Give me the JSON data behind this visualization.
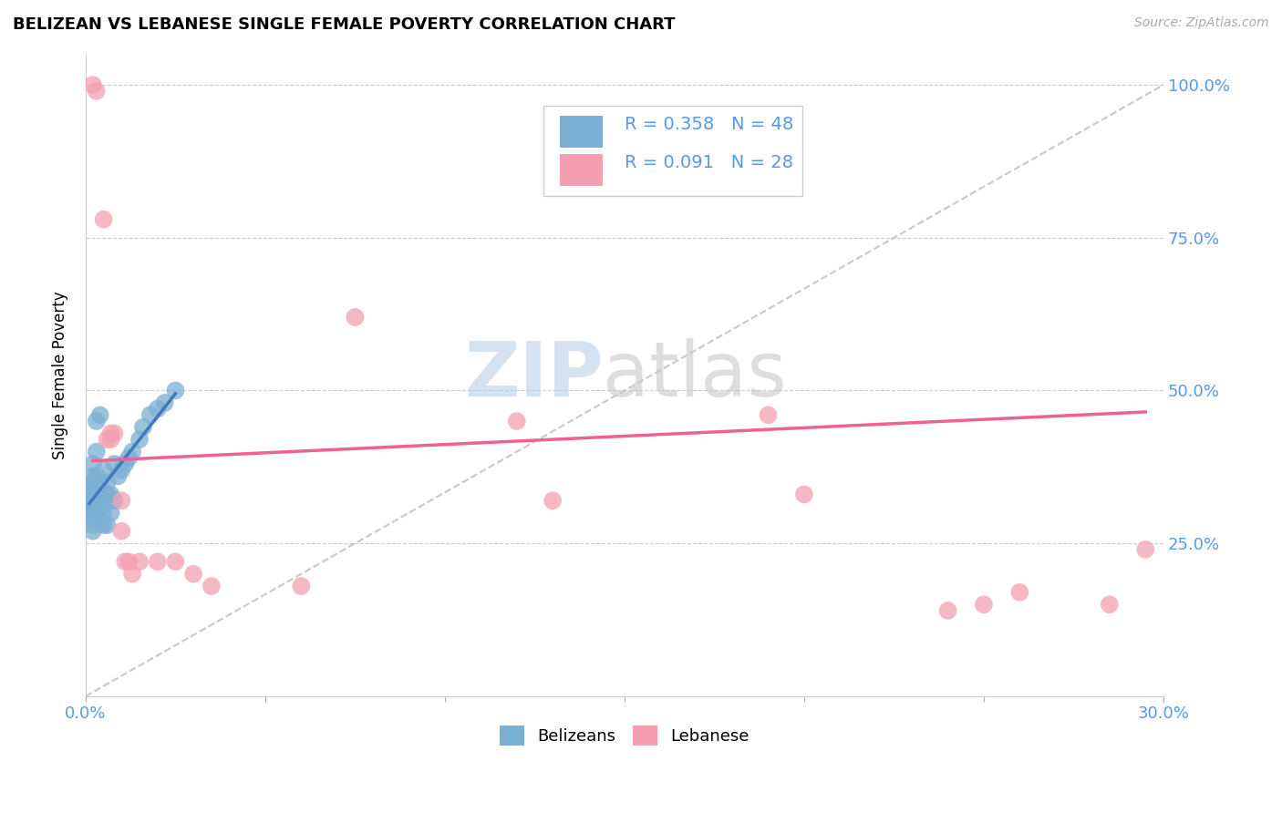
{
  "title": "BELIZEAN VS LEBANESE SINGLE FEMALE POVERTY CORRELATION CHART",
  "source": "Source: ZipAtlas.com",
  "ylabel": "Single Female Poverty",
  "yticks": [
    0.0,
    0.25,
    0.5,
    0.75,
    1.0
  ],
  "ytick_labels": [
    "",
    "25.0%",
    "50.0%",
    "75.0%",
    "100.0%"
  ],
  "xlim": [
    0.0,
    0.3
  ],
  "ylim": [
    0.0,
    1.05
  ],
  "belizean_color": "#7bafd4",
  "lebanese_color": "#f4a0b0",
  "belizean_line_color": "#4477bb",
  "lebanese_line_color": "#f06090",
  "dashed_line_color": "#bbbbbb",
  "watermark_zip": "ZIP",
  "watermark_atlas": "atlas",
  "legend_R_belizean": "R = 0.358",
  "legend_N_belizean": "N = 48",
  "legend_R_lebanese": "R = 0.091",
  "legend_N_lebanese": "N = 28",
  "belizean_x": [
    0.001,
    0.001,
    0.001,
    0.001,
    0.001,
    0.001,
    0.001,
    0.001,
    0.002,
    0.002,
    0.002,
    0.002,
    0.002,
    0.002,
    0.002,
    0.003,
    0.003,
    0.003,
    0.003,
    0.003,
    0.003,
    0.004,
    0.004,
    0.004,
    0.004,
    0.004,
    0.005,
    0.005,
    0.005,
    0.005,
    0.006,
    0.006,
    0.006,
    0.007,
    0.007,
    0.008,
    0.008,
    0.009,
    0.01,
    0.011,
    0.012,
    0.013,
    0.015,
    0.016,
    0.018,
    0.02,
    0.022,
    0.025
  ],
  "belizean_y": [
    0.29,
    0.3,
    0.3,
    0.31,
    0.31,
    0.32,
    0.33,
    0.34,
    0.27,
    0.28,
    0.3,
    0.32,
    0.35,
    0.36,
    0.38,
    0.3,
    0.32,
    0.34,
    0.36,
    0.4,
    0.45,
    0.29,
    0.31,
    0.33,
    0.35,
    0.46,
    0.28,
    0.3,
    0.32,
    0.37,
    0.28,
    0.33,
    0.35,
    0.3,
    0.33,
    0.32,
    0.38,
    0.36,
    0.37,
    0.38,
    0.39,
    0.4,
    0.42,
    0.44,
    0.46,
    0.47,
    0.48,
    0.5
  ],
  "lebanese_x": [
    0.002,
    0.003,
    0.005,
    0.006,
    0.007,
    0.007,
    0.008,
    0.01,
    0.01,
    0.011,
    0.012,
    0.013,
    0.015,
    0.02,
    0.025,
    0.03,
    0.035,
    0.06,
    0.075,
    0.12,
    0.13,
    0.19,
    0.2,
    0.24,
    0.25,
    0.26,
    0.285,
    0.295
  ],
  "lebanese_y": [
    1.0,
    0.99,
    0.78,
    0.42,
    0.42,
    0.43,
    0.43,
    0.27,
    0.32,
    0.22,
    0.22,
    0.2,
    0.22,
    0.22,
    0.22,
    0.2,
    0.18,
    0.18,
    0.62,
    0.45,
    0.32,
    0.46,
    0.33,
    0.14,
    0.15,
    0.17,
    0.15,
    0.24
  ],
  "belizean_trend_x": [
    0.001,
    0.025
  ],
  "belizean_trend_y": [
    0.315,
    0.495
  ],
  "lebanese_trend_x": [
    0.002,
    0.295
  ],
  "lebanese_trend_y": [
    0.385,
    0.465
  ]
}
